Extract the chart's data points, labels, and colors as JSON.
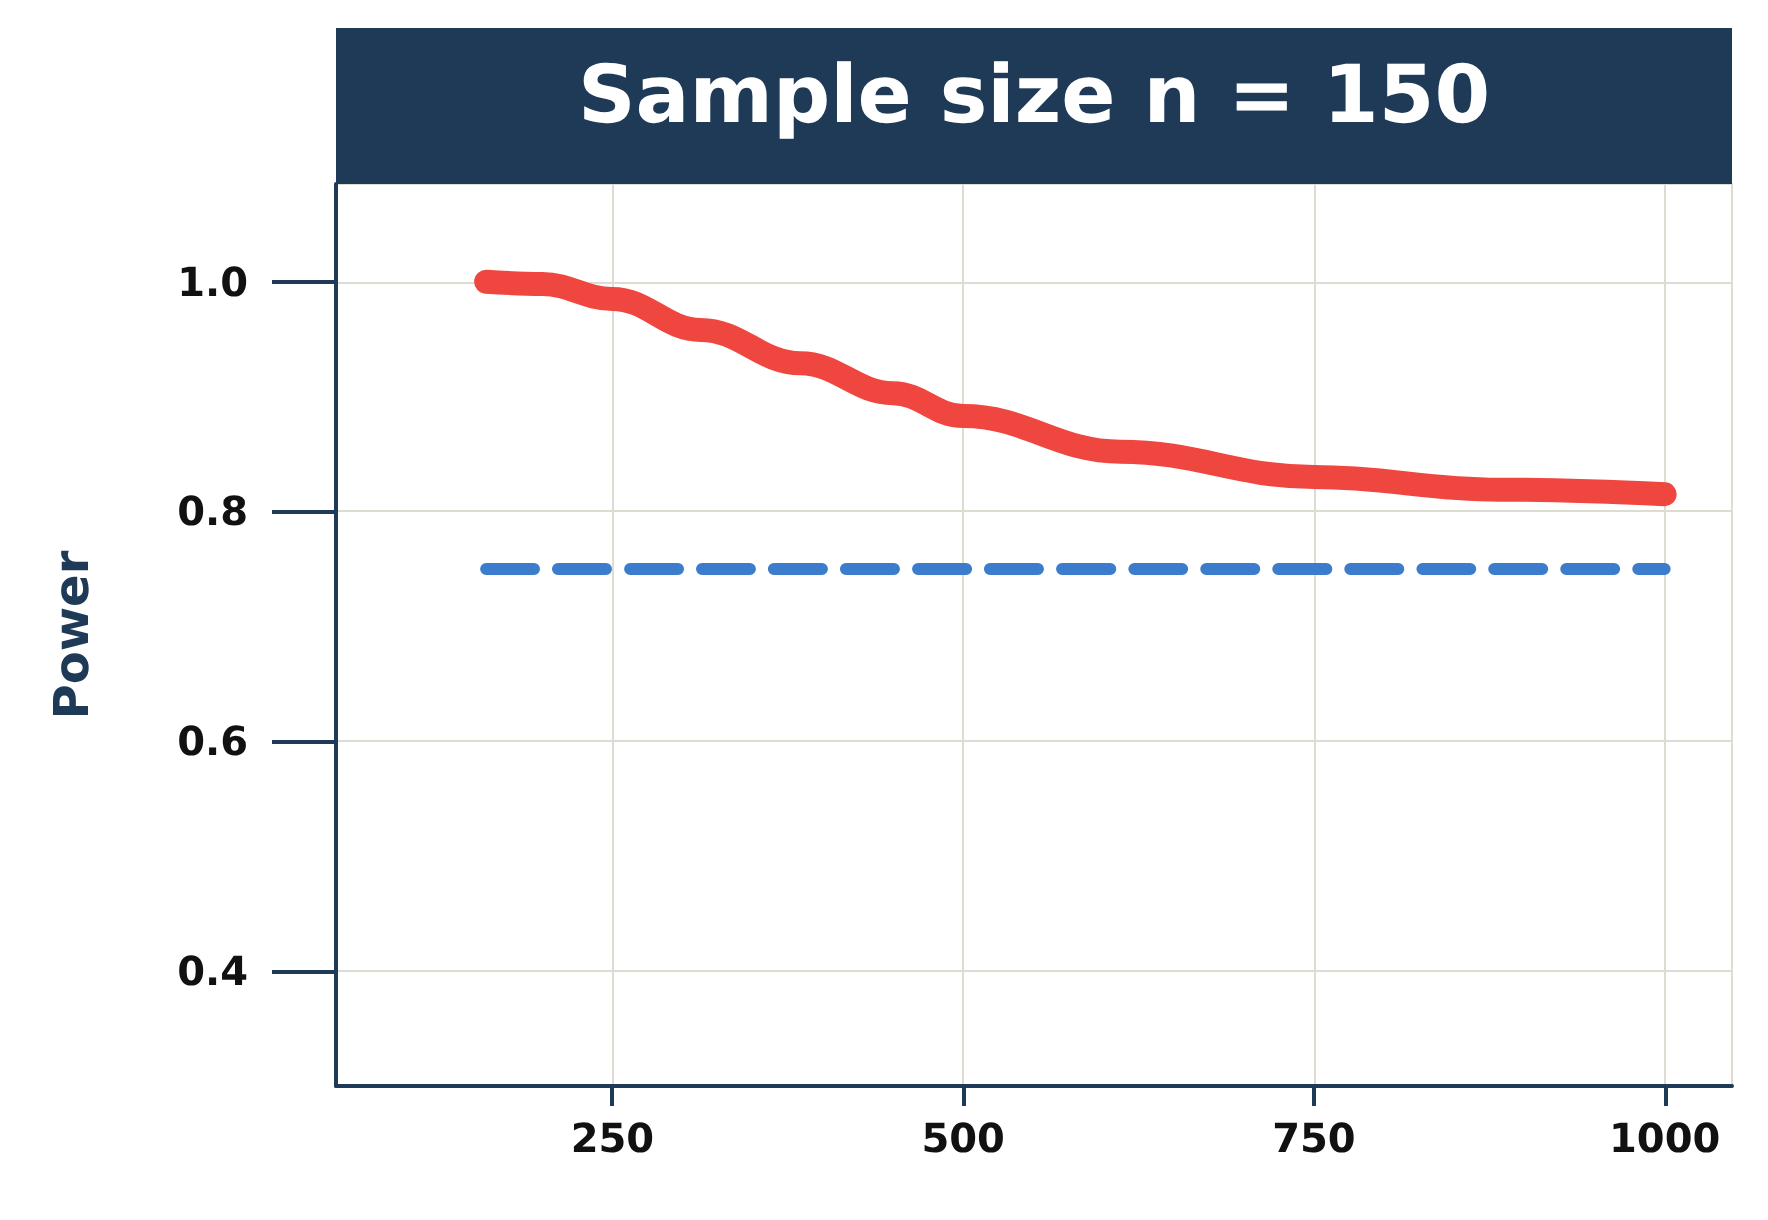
{
  "chart_data": {
    "type": "line",
    "title": "Sample size n = 150",
    "ylabel": "Power",
    "series": [
      {
        "color": "#ef4640",
        "x": [
          160,
          200,
          250,
          313,
          384,
          450,
          500,
          612,
          750,
          882,
          1000
        ],
        "values": [
          1.0,
          0.998,
          0.985,
          0.958,
          0.929,
          0.903,
          0.883,
          0.852,
          0.83,
          0.819,
          0.815
        ]
      },
      {
        "color": "#3b7dcc",
        "x": [
          160,
          1000
        ],
        "values": [
          0.75,
          0.75
        ],
        "line_style": "dashed"
      }
    ],
    "xlim": [
      53,
      1048
    ],
    "xticks": [
      250,
      500,
      750,
      1000
    ],
    "ylim": [
      0.3,
      1.085
    ],
    "yticks": [
      0.4,
      0.6,
      0.8,
      {
        "value": 1,
        "label": "1.0"
      }
    ],
    "grid": true,
    "marker": "none",
    "line_style": "solid"
  }
}
